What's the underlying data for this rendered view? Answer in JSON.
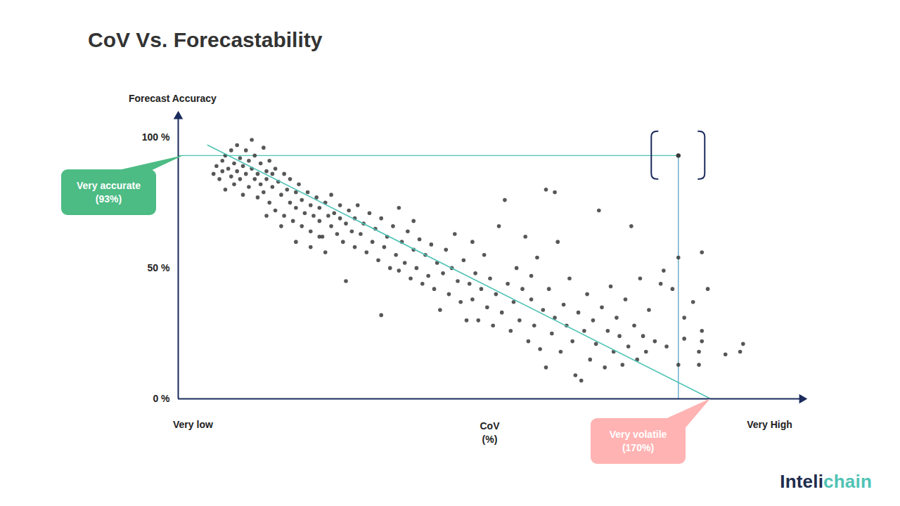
{
  "chart_data": {
    "type": "scatter",
    "title": "CoV Vs. Forecastability",
    "y_label": "Forecast Accuracy",
    "x_label": [
      "CoV",
      "(%)"
    ],
    "xlim": [
      0,
      212
    ],
    "ylim": [
      0,
      108
    ],
    "xticks": [
      {
        "value": 5,
        "label": "Very low"
      },
      {
        "value": 201,
        "label": "Very High"
      }
    ],
    "yticks": [
      {
        "value": 0,
        "label": "0 %"
      },
      {
        "value": 50,
        "label": "50 %"
      },
      {
        "value": 100,
        "label": "100 %"
      }
    ],
    "color": "#3a3a3a",
    "x": [
      12,
      13,
      14,
      15,
      15,
      16,
      16,
      17,
      18,
      18,
      19,
      19,
      20,
      20,
      21,
      21,
      22,
      22,
      23,
      23,
      24,
      24,
      25,
      25,
      26,
      26,
      27,
      27,
      28,
      28,
      29,
      29,
      30,
      30,
      31,
      31,
      32,
      32,
      33,
      33,
      34,
      35,
      36,
      36,
      37,
      38,
      38,
      39,
      40,
      40,
      41,
      42,
      42,
      43,
      44,
      45,
      45,
      46,
      47,
      48,
      48,
      49,
      50,
      51,
      52,
      52,
      53,
      54,
      55,
      55,
      56,
      57,
      58,
      59,
      60,
      60,
      30,
      35,
      40,
      45,
      50,
      57,
      69,
      48,
      61,
      62,
      63,
      64,
      65,
      66,
      67,
      68,
      69,
      70,
      71,
      72,
      73,
      74,
      75,
      75,
      76,
      77,
      78,
      79,
      80,
      80,
      81,
      82,
      83,
      84,
      85,
      86,
      87,
      88,
      89,
      90,
      91,
      92,
      93,
      94,
      95,
      96,
      97,
      98,
      99,
      100,
      100,
      101,
      102,
      103,
      104,
      105,
      106,
      107,
      108,
      109,
      110,
      111,
      112,
      113,
      114,
      115,
      116,
      117,
      118,
      119,
      120,
      120,
      121,
      122,
      123,
      124,
      125,
      125,
      126,
      127,
      128,
      128,
      129,
      130,
      131,
      132,
      133,
      134,
      135,
      136,
      137,
      138,
      139,
      140,
      141,
      142,
      143,
      144,
      145,
      146,
      147,
      148,
      149,
      150,
      151,
      152,
      153,
      154,
      155,
      156,
      157,
      158,
      159,
      160,
      162,
      164,
      165,
      166,
      168,
      170,
      170,
      172,
      172,
      175,
      177,
      178,
      178,
      180,
      178,
      186,
      191,
      192,
      177
    ],
    "values": [
      86,
      89,
      84,
      91,
      87,
      93,
      80,
      88,
      95,
      85,
      90,
      82,
      97,
      87,
      92,
      84,
      78,
      89,
      95,
      86,
      91,
      81,
      99,
      88,
      84,
      93,
      77,
      86,
      90,
      82,
      96,
      79,
      87,
      84,
      75,
      91,
      81,
      86,
      72,
      88,
      83,
      78,
      86,
      70,
      80,
      75,
      84,
      68,
      79,
      73,
      82,
      76,
      66,
      71,
      79,
      74,
      64,
      70,
      77,
      68,
      73,
      62,
      75,
      70,
      66,
      78,
      71,
      63,
      69,
      74,
      60,
      67,
      72,
      64,
      69,
      58,
      70,
      66,
      60,
      58,
      56,
      45,
      32,
      62,
      74,
      63,
      67,
      56,
      71,
      60,
      65,
      53,
      69,
      58,
      62,
      50,
      66,
      55,
      73,
      49,
      60,
      52,
      64,
      46,
      57,
      68,
      50,
      61,
      44,
      55,
      47,
      59,
      42,
      52,
      34,
      48,
      57,
      40,
      50,
      63,
      45,
      37,
      53,
      30,
      44,
      60,
      38,
      48,
      30,
      42,
      55,
      35,
      46,
      28,
      40,
      66,
      33,
      76,
      44,
      26,
      37,
      50,
      30,
      42,
      62,
      22,
      38,
      47,
      28,
      54,
      19,
      34,
      80,
      12,
      42,
      25,
      79,
      31,
      60,
      18,
      36,
      28,
      46,
      22,
      9,
      33,
      7,
      26,
      40,
      15,
      30,
      21,
      72,
      35,
      12,
      26,
      43,
      18,
      31,
      24,
      13,
      38,
      20,
      66,
      28,
      15,
      46,
      24,
      18,
      34,
      22,
      44,
      49,
      20,
      42,
      13,
      54,
      31,
      23,
      37,
      13,
      22,
      26,
      42,
      56,
      17,
      18,
      21,
      18
    ],
    "trend_line": {
      "x": [
        10,
        181
      ],
      "values": [
        97,
        0
      ],
      "color": "#4fc3b5"
    },
    "highlight": {
      "x": 170,
      "value": 93,
      "color": "#4a9cc0"
    },
    "annotations": [
      {
        "text": [
          "Very accurate",
          "(93%)"
        ],
        "color": "#4cbb84"
      },
      {
        "text": [
          "Very volatile",
          "(170%)"
        ],
        "color": "#ffb3b3"
      }
    ]
  },
  "brand": {
    "text": [
      "Inteli",
      "chain"
    ],
    "colors": [
      "#1f2d4d",
      "#4fc3b5"
    ]
  }
}
